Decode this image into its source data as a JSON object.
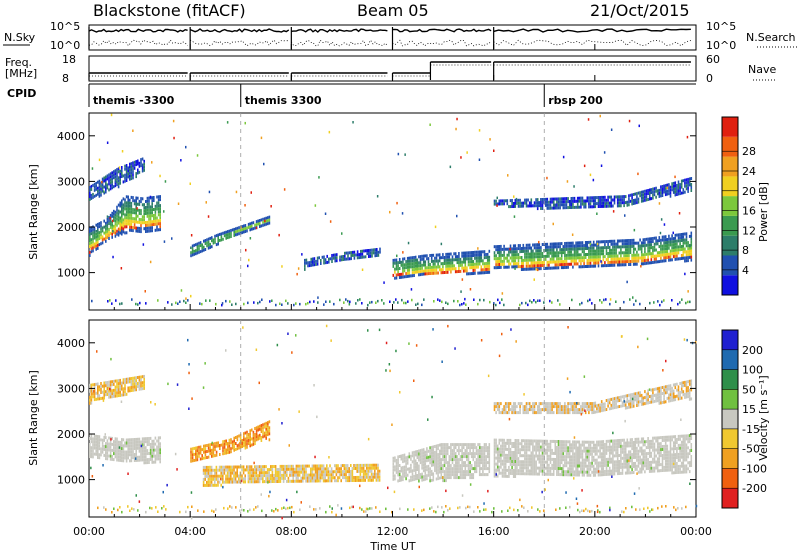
{
  "header": {
    "station": "Blackstone (fitACF)",
    "beam": "Beam 05",
    "date": "21/Oct/2015"
  },
  "summary_panels": {
    "nsky_label": "N.Sky",
    "nsky_ticks": [
      "10^5",
      "10^0"
    ],
    "nsearch_label": "N.Search",
    "nsearch_ticks": [
      "10^5",
      "10^0"
    ],
    "freq_label_line1": "Freq.",
    "freq_label_line2": "[MHz]",
    "freq_ticks": [
      "18",
      "8"
    ],
    "nave_label": "Nave",
    "nave_ticks": [
      "60",
      "0"
    ],
    "cpid_label": "CPID",
    "cpid_segments": [
      {
        "start_h": 0.0,
        "label": "themis -3300"
      },
      {
        "start_h": 6.0,
        "label": "themis 3300"
      },
      {
        "start_h": 18.0,
        "label": "rbsp 200"
      }
    ]
  },
  "chart_data": [
    {
      "type": "heatmap",
      "title": "",
      "xlabel": "Time UT",
      "ylabel": "Slant Range [km]",
      "x_ticks": [
        "00:00",
        "04:00",
        "08:00",
        "12:00",
        "16:00",
        "20:00",
        "00:00"
      ],
      "x_range_hours": [
        0,
        24
      ],
      "ylim": [
        180,
        4500
      ],
      "y_ticks": [
        1000,
        2000,
        3000,
        4000
      ],
      "colorbar": {
        "label": "Power [dB]",
        "range": [
          0,
          30
        ],
        "ticks": [
          4,
          8,
          12,
          16,
          20,
          24,
          28
        ],
        "colors": [
          "#1010e0",
          "#2050b0",
          "#2d7d6a",
          "#3a9a50",
          "#7cc83c",
          "#f0d020",
          "#f0a020",
          "#f06010",
          "#e02010"
        ]
      },
      "bands": [
        {
          "t": [
            0.0,
            2.8
          ],
          "r": [
            [
              2000,
              1400
            ],
            [
              2200,
              1750
            ],
            [
              2700,
              1900
            ],
            [
              2650,
              1930
            ],
            [
              2700,
              1950
            ]
          ],
          "level": "strong"
        },
        {
          "t": [
            0.0,
            2.2
          ],
          "r": [
            [
              2600,
              2900
            ],
            [
              2900,
              3300
            ],
            [
              3250,
              3550
            ]
          ],
          "level": "weak"
        },
        {
          "t": [
            4.0,
            7.1
          ],
          "r": [
            [
              1400,
              1600
            ],
            [
              1650,
              1850
            ],
            [
              1900,
              2050
            ],
            [
              2100,
              2250
            ]
          ],
          "level": "medium"
        },
        {
          "t": [
            8.5,
            11.5
          ],
          "r": [
            [
              1100,
              1300
            ],
            [
              1300,
              1450
            ],
            [
              1400,
              1550
            ]
          ],
          "level": "weak"
        },
        {
          "t": [
            12.0,
            15.8
          ],
          "r": [
            [
              900,
              1300
            ],
            [
              950,
              1400
            ],
            [
              1000,
              1450
            ],
            [
              1000,
              1500
            ]
          ],
          "level": "strong"
        },
        {
          "t": [
            16.0,
            23.8
          ],
          "r": [
            [
              1100,
              1600
            ],
            [
              1100,
              1650
            ],
            [
              1150,
              1700
            ],
            [
              1200,
              1750
            ],
            [
              1300,
              1900
            ]
          ],
          "level": "strong"
        },
        {
          "t": [
            16.0,
            23.8
          ],
          "r": [
            [
              2500,
              2600
            ],
            [
              2400,
              2650
            ],
            [
              2500,
              2700
            ],
            [
              2800,
              3100
            ]
          ],
          "level": "weak"
        }
      ]
    },
    {
      "type": "heatmap",
      "title": "",
      "xlabel": "Time UT",
      "ylabel": "Slant Range [km]",
      "x_ticks": [
        "00:00",
        "04:00",
        "08:00",
        "12:00",
        "16:00",
        "20:00",
        "00:00"
      ],
      "x_range_hours": [
        0,
        24
      ],
      "ylim": [
        180,
        4500
      ],
      "y_ticks": [
        1000,
        2000,
        3000,
        4000
      ],
      "colorbar": {
        "label": "Velocity [m s⁻¹]",
        "range": [
          -250,
          250
        ],
        "ticks": [
          200,
          100,
          50,
          15,
          -15,
          -50,
          -100,
          -200
        ],
        "colors": [
          "#e02020",
          "#f06010",
          "#f0a020",
          "#f0c830",
          "#c8c8c0",
          "#70c040",
          "#2f8f4a",
          "#1f6ab0",
          "#2020d0"
        ]
      },
      "bands": [
        {
          "t": [
            0.0,
            2.8
          ],
          "r": [
            [
              1500,
              2000
            ],
            [
              1400,
              1900
            ],
            [
              1400,
              1950
            ]
          ],
          "level": "ground"
        },
        {
          "t": [
            0.0,
            2.2
          ],
          "r": [
            [
              2700,
              3100
            ],
            [
              3000,
              3300
            ]
          ],
          "level": "neg"
        },
        {
          "t": [
            4.0,
            7.1
          ],
          "r": [
            [
              1400,
              1700
            ],
            [
              1600,
              1900
            ],
            [
              1900,
              2300
            ]
          ],
          "level": "neg_strong"
        },
        {
          "t": [
            4.5,
            11.5
          ],
          "r": [
            [
              900,
              1300
            ],
            [
              1000,
              1350
            ]
          ],
          "level": "neg"
        },
        {
          "t": [
            12.0,
            15.8
          ],
          "r": [
            [
              1000,
              1500
            ],
            [
              1000,
              1800
            ],
            [
              1100,
              1800
            ]
          ],
          "level": "ground"
        },
        {
          "t": [
            16.0,
            23.8
          ],
          "r": [
            [
              1100,
              1900
            ],
            [
              1100,
              1850
            ],
            [
              1200,
              2000
            ]
          ],
          "level": "ground"
        },
        {
          "t": [
            16.0,
            23.8
          ],
          "r": [
            [
              2500,
              2700
            ],
            [
              2500,
              2700
            ],
            [
              2800,
              3200
            ]
          ],
          "level": "ground_neg"
        }
      ]
    }
  ]
}
